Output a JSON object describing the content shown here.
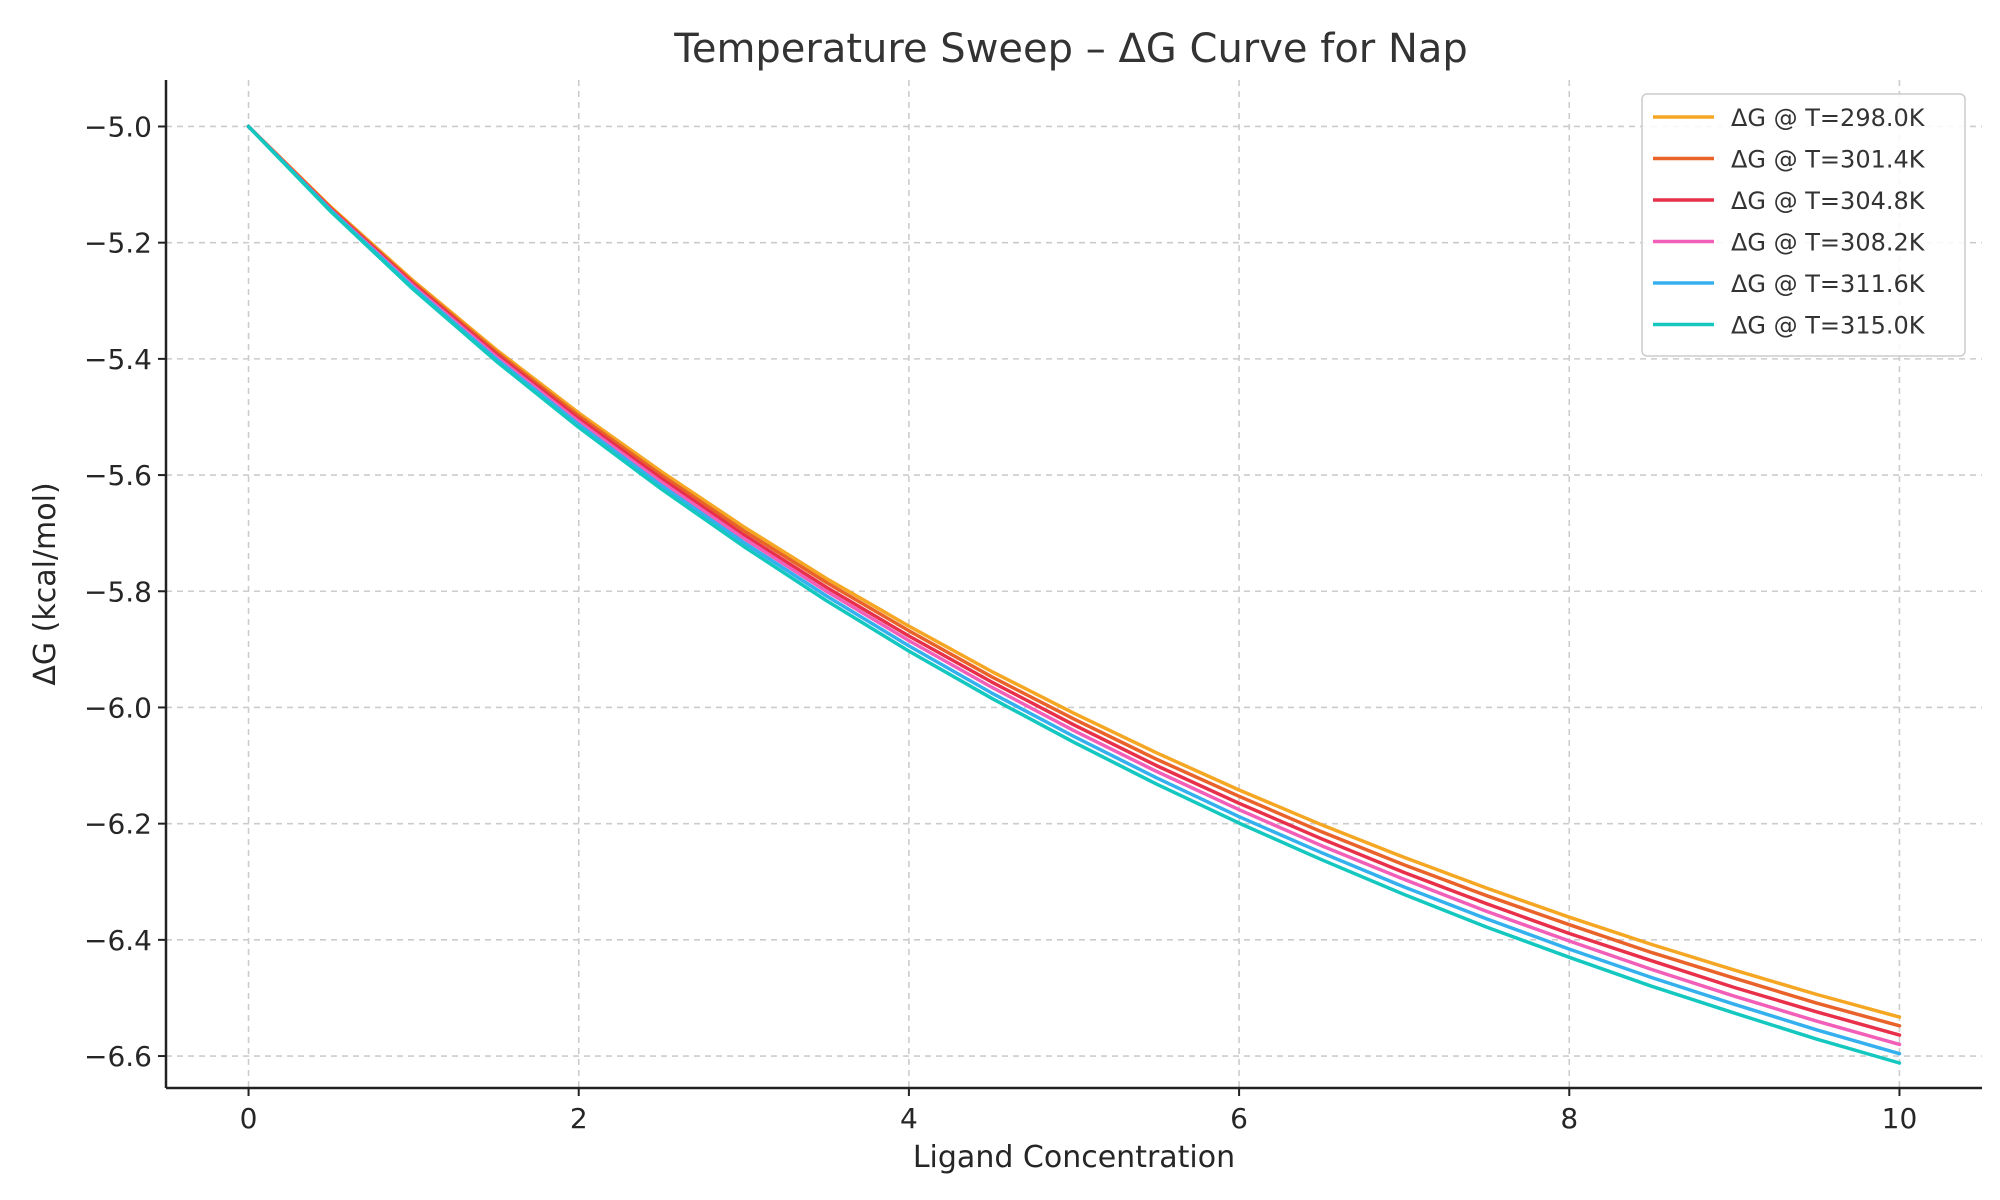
{
  "chart_data": {
    "type": "line",
    "title": "Temperature Sweep – ΔG Curve for Nap",
    "xlabel": "Ligand Concentration",
    "ylabel": "ΔG (kcal/mol)",
    "xlim": [
      -0.5,
      10.5
    ],
    "ylim": [
      -6.655,
      -4.92
    ],
    "xticks": [
      0,
      2,
      4,
      6,
      8,
      10
    ],
    "xtick_labels": [
      "0",
      "2",
      "4",
      "6",
      "8",
      "10"
    ],
    "yticks": [
      -5.0,
      -5.2,
      -5.4,
      -5.6,
      -5.8,
      -6.0,
      -6.2,
      -6.4,
      -6.6
    ],
    "ytick_labels": [
      "−5.0",
      "−5.2",
      "−5.4",
      "−5.6",
      "−5.8",
      "−6.0",
      "−6.2",
      "−6.4",
      "−6.6"
    ],
    "grid": true,
    "legend_position": "top-right",
    "x": [
      0,
      0.5,
      1,
      1.5,
      2,
      2.5,
      3,
      3.5,
      4,
      4.5,
      5,
      5.5,
      6,
      6.5,
      7,
      7.5,
      8,
      8.5,
      9,
      9.5,
      10
    ],
    "series": [
      {
        "name": "ΔG @ T=298.0K",
        "color": "#f5a623",
        "values": [
          -5.0,
          -5.139,
          -5.266,
          -5.384,
          -5.493,
          -5.594,
          -5.689,
          -5.778,
          -5.86,
          -5.938,
          -6.01,
          -6.078,
          -6.142,
          -6.202,
          -6.258,
          -6.311,
          -6.361,
          -6.408,
          -6.452,
          -6.494,
          -6.533
        ]
      },
      {
        "name": "ΔG @ T=301.4K",
        "color": "#e8622a",
        "values": [
          -5.0,
          -5.141,
          -5.269,
          -5.388,
          -5.498,
          -5.6,
          -5.696,
          -5.785,
          -5.868,
          -5.947,
          -6.02,
          -6.089,
          -6.153,
          -6.214,
          -6.271,
          -6.324,
          -6.374,
          -6.422,
          -6.466,
          -6.509,
          -6.548
        ]
      },
      {
        "name": "ΔG @ T=304.8K",
        "color": "#e8304a",
        "values": [
          -5.0,
          -5.142,
          -5.272,
          -5.392,
          -5.503,
          -5.606,
          -5.703,
          -5.793,
          -5.877,
          -5.956,
          -6.03,
          -6.1,
          -6.165,
          -6.226,
          -6.284,
          -6.338,
          -6.389,
          -6.436,
          -6.482,
          -6.524,
          -6.564
        ]
      },
      {
        "name": "ΔG @ T=308.2K",
        "color": "#f25fb8",
        "values": [
          -5.0,
          -5.144,
          -5.275,
          -5.396,
          -5.508,
          -5.612,
          -5.709,
          -5.8,
          -5.885,
          -5.965,
          -6.04,
          -6.11,
          -6.176,
          -6.238,
          -6.296,
          -6.351,
          -6.402,
          -6.451,
          -6.497,
          -6.54,
          -6.58
        ]
      },
      {
        "name": "ΔG @ T=311.6K",
        "color": "#35b0ef",
        "values": [
          -5.0,
          -5.145,
          -5.278,
          -5.4,
          -5.513,
          -5.618,
          -5.716,
          -5.808,
          -5.894,
          -5.975,
          -6.05,
          -6.121,
          -6.188,
          -6.25,
          -6.309,
          -6.364,
          -6.416,
          -6.465,
          -6.511,
          -6.555,
          -6.596
        ]
      },
      {
        "name": "ΔG @ T=315.0K",
        "color": "#14c8c0",
        "values": [
          -5.0,
          -5.147,
          -5.281,
          -5.404,
          -5.518,
          -5.624,
          -5.723,
          -5.816,
          -5.903,
          -5.984,
          -6.06,
          -6.132,
          -6.199,
          -6.262,
          -6.322,
          -6.378,
          -6.43,
          -6.48,
          -6.526,
          -6.571,
          -6.612
        ]
      }
    ]
  }
}
